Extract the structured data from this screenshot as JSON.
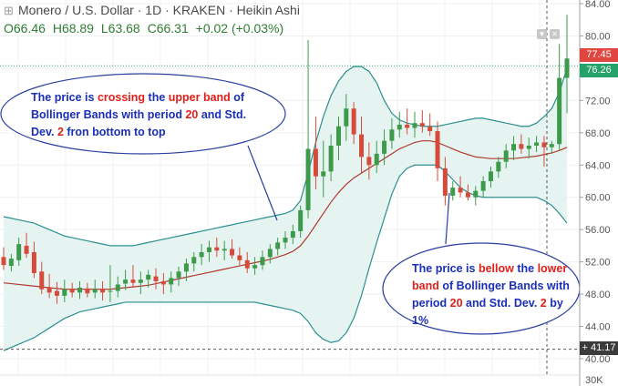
{
  "header": {
    "symbol": "Monero / U.S. Dollar",
    "interval": "1D",
    "exchange": "KRAKEN",
    "chart_style": "Heikin Ashi",
    "open": "O66.46",
    "high": "H68.89",
    "low": "L63.68",
    "close": "C66.31",
    "change": "+0.02 (+0.03%)"
  },
  "price_tags": {
    "upper": "77.45",
    "current": "76.26",
    "crosshair": "41.17"
  },
  "axis_bottom_label": "30K",
  "annotations": {
    "upper": {
      "p1": "The price is ",
      "p2": "crossing",
      "p3": " the ",
      "p4": "upper band",
      "p5": " of Bollinger Bands with period ",
      "p6": "20",
      "p7": " and Std. Dev. ",
      "p8": "2",
      "p9": " fron bottom to top"
    },
    "lower": {
      "p1": "The price is ",
      "p2": "bellow",
      "p3": " the ",
      "p4": "lower band",
      "p5": " of Bollinger Bands with period ",
      "p6": "20",
      "p7": " and Std. Dev. ",
      "p8": "2",
      "p9": " by 1%"
    }
  },
  "colors": {
    "up": "#3c9a4a",
    "down": "#d64a3b",
    "band": "#2a8f8f",
    "band_fill": "#e6f4f1",
    "basis": "#b03a2e",
    "annotation_text": "#1a2fb8",
    "annotation_red": "#e0201a",
    "ellipse": "#2a3fa0"
  },
  "chart_data": {
    "type": "candlestick",
    "ylim": [
      38,
      84
    ],
    "yticks": [
      40,
      44,
      48,
      52,
      56,
      60,
      64,
      68,
      72,
      76,
      80,
      84
    ],
    "candles": [
      {
        "o": 52.6,
        "h": 53.8,
        "l": 51.0,
        "c": 51.6
      },
      {
        "o": 51.5,
        "h": 53.0,
        "l": 50.8,
        "c": 52.4
      },
      {
        "o": 52.2,
        "h": 55.0,
        "l": 51.5,
        "c": 54.2
      },
      {
        "o": 54.0,
        "h": 55.6,
        "l": 52.5,
        "c": 53.0
      },
      {
        "o": 53.2,
        "h": 54.5,
        "l": 50.0,
        "c": 50.6
      },
      {
        "o": 50.8,
        "h": 52.0,
        "l": 48.0,
        "c": 48.6
      },
      {
        "o": 48.8,
        "h": 50.5,
        "l": 47.5,
        "c": 48.2
      },
      {
        "o": 48.4,
        "h": 49.5,
        "l": 46.8,
        "c": 47.8
      },
      {
        "o": 47.8,
        "h": 49.8,
        "l": 47.0,
        "c": 48.6
      },
      {
        "o": 48.6,
        "h": 49.4,
        "l": 47.6,
        "c": 48.2
      },
      {
        "o": 48.2,
        "h": 49.6,
        "l": 47.4,
        "c": 48.8
      },
      {
        "o": 48.7,
        "h": 49.4,
        "l": 47.6,
        "c": 48.1
      },
      {
        "o": 48.2,
        "h": 49.8,
        "l": 47.5,
        "c": 48.6
      },
      {
        "o": 48.6,
        "h": 49.6,
        "l": 47.2,
        "c": 48.2
      },
      {
        "o": 48.4,
        "h": 51.6,
        "l": 47.0,
        "c": 48.4
      },
      {
        "o": 48.4,
        "h": 50.2,
        "l": 47.6,
        "c": 49.2
      },
      {
        "o": 49.3,
        "h": 51.0,
        "l": 48.5,
        "c": 49.8
      },
      {
        "o": 49.8,
        "h": 51.6,
        "l": 48.8,
        "c": 49.4
      },
      {
        "o": 49.4,
        "h": 50.8,
        "l": 48.0,
        "c": 49.8
      },
      {
        "o": 49.8,
        "h": 51.0,
        "l": 48.8,
        "c": 50.4
      },
      {
        "o": 50.2,
        "h": 51.2,
        "l": 48.6,
        "c": 49.6
      },
      {
        "o": 49.6,
        "h": 50.6,
        "l": 48.0,
        "c": 49.2
      },
      {
        "o": 49.2,
        "h": 50.8,
        "l": 48.2,
        "c": 50.0
      },
      {
        "o": 50.0,
        "h": 51.4,
        "l": 49.0,
        "c": 50.8
      },
      {
        "o": 50.8,
        "h": 52.4,
        "l": 49.6,
        "c": 51.8
      },
      {
        "o": 51.8,
        "h": 53.2,
        "l": 50.8,
        "c": 52.6
      },
      {
        "o": 52.6,
        "h": 54.2,
        "l": 51.6,
        "c": 53.2
      },
      {
        "o": 53.2,
        "h": 54.6,
        "l": 52.0,
        "c": 53.8
      },
      {
        "o": 53.8,
        "h": 55.0,
        "l": 52.6,
        "c": 53.4
      },
      {
        "o": 53.4,
        "h": 54.6,
        "l": 52.2,
        "c": 53.6
      },
      {
        "o": 53.6,
        "h": 54.8,
        "l": 52.4,
        "c": 52.8
      },
      {
        "o": 52.8,
        "h": 53.8,
        "l": 51.6,
        "c": 52.2
      },
      {
        "o": 52.2,
        "h": 53.2,
        "l": 50.6,
        "c": 51.2
      },
      {
        "o": 51.2,
        "h": 52.6,
        "l": 50.4,
        "c": 51.6
      },
      {
        "o": 51.6,
        "h": 53.4,
        "l": 51.0,
        "c": 52.6
      },
      {
        "o": 52.6,
        "h": 54.2,
        "l": 51.8,
        "c": 53.6
      },
      {
        "o": 53.6,
        "h": 55.0,
        "l": 52.8,
        "c": 54.4
      },
      {
        "o": 54.4,
        "h": 55.8,
        "l": 53.6,
        "c": 55.0
      },
      {
        "o": 55.0,
        "h": 56.6,
        "l": 54.2,
        "c": 55.8
      },
      {
        "o": 55.8,
        "h": 59.0,
        "l": 55.0,
        "c": 58.4
      },
      {
        "o": 58.4,
        "h": 79.5,
        "l": 57.4,
        "c": 66.0
      },
      {
        "o": 66.0,
        "h": 70.0,
        "l": 61.0,
        "c": 62.6
      },
      {
        "o": 62.6,
        "h": 67.0,
        "l": 60.0,
        "c": 63.2
      },
      {
        "o": 63.2,
        "h": 67.8,
        "l": 62.0,
        "c": 66.4
      },
      {
        "o": 66.4,
        "h": 70.0,
        "l": 64.6,
        "c": 68.8
      },
      {
        "o": 68.8,
        "h": 72.8,
        "l": 67.0,
        "c": 71.0
      },
      {
        "o": 71.0,
        "h": 71.8,
        "l": 66.6,
        "c": 67.8
      },
      {
        "o": 67.8,
        "h": 70.0,
        "l": 63.0,
        "c": 65.0
      },
      {
        "o": 65.0,
        "h": 66.8,
        "l": 62.2,
        "c": 64.0
      },
      {
        "o": 64.0,
        "h": 67.0,
        "l": 63.0,
        "c": 65.4
      },
      {
        "o": 65.4,
        "h": 68.4,
        "l": 64.0,
        "c": 67.0
      },
      {
        "o": 67.0,
        "h": 69.8,
        "l": 66.0,
        "c": 68.4
      },
      {
        "o": 68.4,
        "h": 70.6,
        "l": 67.4,
        "c": 69.0
      },
      {
        "o": 69.0,
        "h": 71.0,
        "l": 67.8,
        "c": 68.6
      },
      {
        "o": 68.6,
        "h": 70.6,
        "l": 67.4,
        "c": 69.2
      },
      {
        "o": 69.2,
        "h": 70.8,
        "l": 68.0,
        "c": 68.8
      },
      {
        "o": 68.8,
        "h": 70.4,
        "l": 67.6,
        "c": 68.2
      },
      {
        "o": 68.2,
        "h": 69.4,
        "l": 62.0,
        "c": 63.6
      },
      {
        "o": 63.6,
        "h": 65.0,
        "l": 59.0,
        "c": 60.2
      },
      {
        "o": 60.2,
        "h": 62.0,
        "l": 59.6,
        "c": 61.2
      },
      {
        "o": 61.2,
        "h": 62.6,
        "l": 60.0,
        "c": 60.6
      },
      {
        "o": 60.6,
        "h": 61.6,
        "l": 59.6,
        "c": 60.0
      },
      {
        "o": 60.0,
        "h": 61.4,
        "l": 59.0,
        "c": 60.8
      },
      {
        "o": 60.8,
        "h": 62.6,
        "l": 60.0,
        "c": 62.0
      },
      {
        "o": 62.0,
        "h": 63.8,
        "l": 61.2,
        "c": 63.2
      },
      {
        "o": 63.2,
        "h": 65.0,
        "l": 62.4,
        "c": 64.4
      },
      {
        "o": 64.4,
        "h": 66.6,
        "l": 63.6,
        "c": 65.8
      },
      {
        "o": 65.8,
        "h": 67.6,
        "l": 64.6,
        "c": 66.6
      },
      {
        "o": 66.6,
        "h": 67.8,
        "l": 65.4,
        "c": 66.0
      },
      {
        "o": 66.0,
        "h": 67.4,
        "l": 64.8,
        "c": 66.4
      },
      {
        "o": 66.4,
        "h": 67.6,
        "l": 65.6,
        "c": 66.8
      },
      {
        "o": 66.8,
        "h": 67.6,
        "l": 63.8,
        "c": 66.2
      },
      {
        "o": 66.2,
        "h": 67.0,
        "l": 65.4,
        "c": 66.6
      },
      {
        "o": 66.6,
        "h": 79.0,
        "l": 65.8,
        "c": 74.8
      },
      {
        "o": 74.8,
        "h": 82.6,
        "l": 70.4,
        "c": 77.2
      }
    ],
    "upper_band": [
      57.6,
      57.4,
      57.2,
      57.0,
      56.8,
      56.4,
      56.0,
      55.6,
      55.2,
      55.0,
      54.8,
      54.6,
      54.4,
      54.2,
      54.0,
      54.0,
      54.0,
      54.0,
      54.2,
      54.4,
      54.6,
      54.8,
      55.0,
      55.2,
      55.4,
      55.6,
      55.8,
      56.0,
      56.2,
      56.4,
      56.6,
      56.8,
      57.0,
      57.2,
      57.4,
      57.6,
      57.8,
      58.0,
      58.4,
      59.6,
      63.0,
      66.8,
      70.0,
      72.6,
      74.4,
      75.6,
      76.2,
      76.2,
      75.6,
      74.2,
      72.0,
      70.4,
      69.6,
      69.2,
      69.0,
      68.8,
      68.8,
      68.8,
      69.0,
      69.2,
      69.4,
      69.6,
      69.8,
      69.8,
      69.6,
      69.4,
      69.2,
      69.0,
      68.8,
      68.8,
      69.2,
      70.0,
      71.0,
      73.0,
      76.0
    ],
    "lower_band": [
      41.0,
      41.4,
      41.8,
      42.2,
      42.6,
      43.2,
      43.8,
      44.4,
      45.0,
      45.4,
      45.8,
      46.0,
      46.2,
      46.4,
      46.6,
      46.8,
      47.0,
      47.0,
      47.0,
      47.0,
      47.0,
      47.0,
      47.0,
      47.0,
      47.0,
      47.0,
      47.0,
      47.0,
      47.0,
      47.0,
      47.0,
      47.0,
      47.0,
      47.0,
      46.8,
      46.6,
      46.4,
      46.2,
      46.0,
      45.6,
      44.6,
      43.2,
      42.4,
      42.0,
      42.2,
      43.2,
      45.0,
      47.8,
      51.2,
      54.4,
      57.4,
      60.4,
      62.6,
      63.6,
      64.0,
      64.0,
      64.0,
      64.0,
      63.2,
      62.2,
      61.2,
      60.6,
      60.2,
      60.0,
      60.0,
      60.0,
      60.0,
      60.0,
      60.0,
      60.0,
      60.0,
      59.6,
      59.0,
      58.0,
      56.8
    ],
    "basis": [
      49.4,
      49.3,
      49.2,
      49.1,
      49.0,
      48.9,
      48.8,
      48.7,
      48.6,
      48.6,
      48.6,
      48.6,
      48.6,
      48.6,
      48.6,
      48.7,
      48.8,
      48.9,
      49.0,
      49.1,
      49.3,
      49.5,
      49.7,
      49.9,
      50.1,
      50.3,
      50.5,
      50.7,
      50.9,
      51.1,
      51.3,
      51.5,
      51.7,
      51.9,
      52.1,
      52.3,
      52.6,
      52.9,
      53.3,
      54.0,
      55.2,
      56.6,
      58.0,
      59.4,
      60.6,
      61.6,
      62.4,
      63.0,
      63.6,
      64.2,
      64.8,
      65.4,
      66.0,
      66.4,
      66.8,
      67.0,
      67.0,
      66.8,
      66.4,
      66.0,
      65.6,
      65.3,
      65.0,
      64.9,
      64.8,
      64.8,
      64.8,
      64.8,
      64.9,
      65.0,
      65.1,
      65.3,
      65.5,
      65.8,
      66.2
    ]
  }
}
